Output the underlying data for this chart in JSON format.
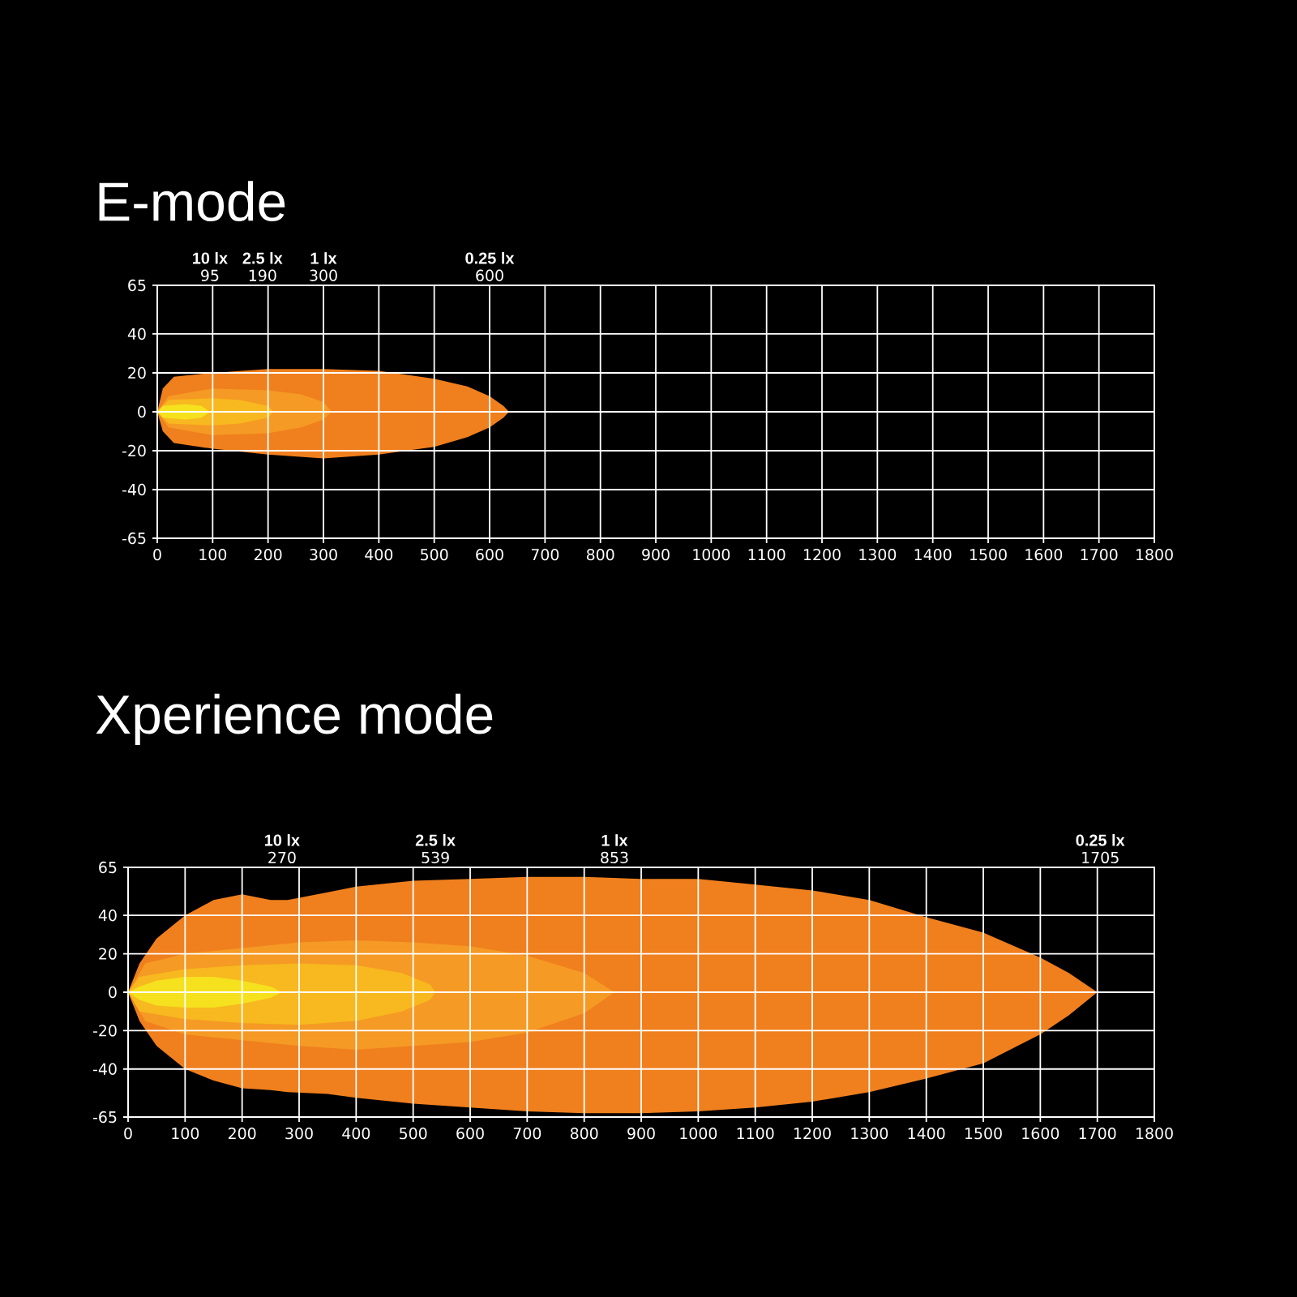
{
  "chart_data": [
    {
      "type": "area",
      "title": "E-mode",
      "xlim": [
        0,
        1800
      ],
      "ylim": [
        -65,
        65
      ],
      "grid": true,
      "xticks": [
        0,
        100,
        200,
        300,
        400,
        500,
        600,
        700,
        800,
        900,
        1000,
        1100,
        1200,
        1300,
        1400,
        1500,
        1600,
        1700,
        1800
      ],
      "yticks": [
        -65,
        -40,
        -20,
        0,
        20,
        40,
        65
      ],
      "x2lim": [
        0,
        1800
      ],
      "x2ticks": [
        95,
        190,
        300,
        600
      ],
      "series": [
        {
          "color": "#f07f1e",
          "x": [
            0,
            10,
            30,
            100,
            200,
            300,
            400,
            500,
            560,
            600,
            625,
            635
          ],
          "values": [
            0,
            12,
            18,
            20,
            22,
            22,
            21,
            17,
            13,
            8,
            3,
            0
          ]
        },
        {
          "color": "#f07f1e",
          "x": [
            0,
            10,
            30,
            100,
            200,
            300,
            400,
            500,
            560,
            600,
            625,
            635
          ],
          "values": [
            0,
            -10,
            -16,
            -19,
            -22,
            -24,
            -22,
            -18,
            -13,
            -8,
            -3,
            0
          ]
        },
        {
          "color": "#f59a24",
          "x": [
            0,
            20,
            100,
            200,
            260,
            300,
            315
          ],
          "values": [
            0,
            8,
            12,
            11,
            9,
            5,
            0
          ]
        },
        {
          "color": "#f59a24",
          "x": [
            0,
            20,
            100,
            200,
            260,
            300,
            315
          ],
          "values": [
            0,
            -8,
            -12,
            -11,
            -8,
            -4,
            0
          ]
        },
        {
          "color": "#f8b81f",
          "x": [
            0,
            20,
            100,
            150,
            200,
            210
          ],
          "values": [
            0,
            6,
            7,
            6,
            3,
            0
          ]
        },
        {
          "color": "#f8b81f",
          "x": [
            0,
            20,
            100,
            150,
            200,
            210
          ],
          "values": [
            0,
            -6,
            -7,
            -6,
            -3,
            0
          ]
        },
        {
          "color": "#f5e11e",
          "x": [
            0,
            10,
            50,
            80,
            95
          ],
          "values": [
            0,
            3,
            4,
            3,
            0
          ]
        },
        {
          "color": "#f5e11e",
          "x": [
            0,
            10,
            50,
            80,
            95
          ],
          "values": [
            0,
            -3,
            -4,
            -3,
            0
          ]
        }
      ],
      "annotations": [
        "10 lx",
        "2.5 lx",
        "1 lx",
        "0.25 lx"
      ]
    },
    {
      "type": "area",
      "title": "Xperience mode",
      "xlim": [
        0,
        1800
      ],
      "ylim": [
        -65,
        65
      ],
      "grid": true,
      "xticks": [
        0,
        100,
        200,
        300,
        400,
        500,
        600,
        700,
        800,
        900,
        1000,
        1100,
        1200,
        1300,
        1400,
        1500,
        1600,
        1700,
        1800
      ],
      "yticks": [
        -65,
        -40,
        -20,
        0,
        20,
        40,
        65
      ],
      "x2lim": [
        0,
        1800
      ],
      "x2ticks": [
        270,
        539,
        853,
        1705
      ],
      "series": [
        {
          "color": "#f07f1e",
          "x": [
            0,
            20,
            50,
            100,
            150,
            200,
            250,
            280,
            350,
            400,
            500,
            600,
            700,
            800,
            900,
            1000,
            1100,
            1200,
            1300,
            1400,
            1500,
            1600,
            1650,
            1700
          ],
          "values": [
            0,
            15,
            28,
            40,
            48,
            51,
            48,
            48,
            52,
            55,
            58,
            59,
            60,
            60,
            59,
            59,
            56,
            53,
            48,
            39,
            31,
            18,
            10,
            0
          ]
        },
        {
          "color": "#f07f1e",
          "x": [
            0,
            20,
            50,
            100,
            150,
            200,
            250,
            280,
            350,
            400,
            500,
            600,
            700,
            800,
            900,
            1000,
            1100,
            1200,
            1300,
            1400,
            1500,
            1600,
            1650,
            1700
          ],
          "values": [
            0,
            -15,
            -28,
            -40,
            -46,
            -50,
            -51,
            -52,
            -53,
            -55,
            -58,
            -60,
            -62,
            -63,
            -63,
            -62,
            -60,
            -57,
            -52,
            -45,
            -37,
            -22,
            -12,
            0
          ]
        },
        {
          "color": "#f59a24",
          "x": [
            0,
            30,
            100,
            200,
            300,
            400,
            500,
            600,
            700,
            800,
            853
          ],
          "values": [
            0,
            15,
            20,
            23,
            26,
            27,
            26,
            24,
            19,
            10,
            0
          ]
        },
        {
          "color": "#f59a24",
          "x": [
            0,
            30,
            100,
            200,
            300,
            400,
            500,
            600,
            700,
            800,
            853
          ],
          "values": [
            0,
            -15,
            -22,
            -25,
            -28,
            -30,
            -28,
            -26,
            -21,
            -11,
            0
          ]
        },
        {
          "color": "#f8b81f",
          "x": [
            0,
            20,
            100,
            200,
            300,
            400,
            480,
            530,
            539
          ],
          "values": [
            0,
            8,
            12,
            14,
            15,
            14,
            10,
            4,
            0
          ]
        },
        {
          "color": "#f8b81f",
          "x": [
            0,
            20,
            100,
            200,
            300,
            400,
            480,
            530,
            539
          ],
          "values": [
            0,
            -10,
            -14,
            -16,
            -17,
            -15,
            -10,
            -4,
            0
          ]
        },
        {
          "color": "#f5e11e",
          "x": [
            0,
            20,
            50,
            100,
            150,
            200,
            250,
            270
          ],
          "values": [
            0,
            3,
            6,
            8,
            8,
            6,
            3,
            0
          ]
        },
        {
          "color": "#f5e11e",
          "x": [
            0,
            20,
            50,
            100,
            150,
            200,
            250,
            270
          ],
          "values": [
            0,
            -4,
            -7,
            -8,
            -8,
            -6,
            -3,
            0
          ]
        }
      ],
      "annotations": [
        "10 lx",
        "2.5 lx",
        "1 lx",
        "0.25 lx"
      ]
    }
  ]
}
